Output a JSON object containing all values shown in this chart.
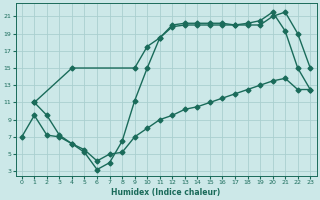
{
  "bg_color": "#cce8e8",
  "grid_color": "#aacfcf",
  "line_color": "#1a6b5a",
  "line_width": 1.0,
  "marker": "D",
  "marker_size": 2.5,
  "xlabel": "Humidex (Indice chaleur)",
  "xlim": [
    -0.5,
    23.5
  ],
  "ylim": [
    2.5,
    22.5
  ],
  "xticks": [
    0,
    1,
    2,
    3,
    4,
    5,
    6,
    7,
    8,
    9,
    10,
    11,
    12,
    13,
    14,
    15,
    16,
    17,
    18,
    19,
    20,
    21,
    22,
    23
  ],
  "yticks": [
    3,
    5,
    7,
    9,
    11,
    13,
    15,
    17,
    19,
    21
  ],
  "line1_x": [
    1,
    2,
    3,
    4,
    5,
    6,
    7,
    8,
    9,
    10,
    11,
    12,
    13,
    14,
    15,
    16,
    17,
    18,
    19,
    20,
    21,
    22,
    23
  ],
  "line1_y": [
    11,
    9.5,
    7.2,
    6.2,
    5.2,
    3.2,
    4.0,
    6.5,
    11.2,
    15.0,
    18.5,
    19.8,
    20.0,
    20.0,
    20.0,
    20.0,
    20.0,
    20.0,
    20.0,
    21.0,
    21.5,
    19.0,
    15.0
  ],
  "line2_x": [
    1,
    4,
    9,
    10,
    11,
    12,
    13,
    14,
    15,
    16,
    17,
    18,
    19,
    20,
    21,
    22,
    23
  ],
  "line2_y": [
    11,
    15.0,
    15.0,
    17.5,
    18.5,
    20.0,
    20.2,
    20.2,
    20.2,
    20.2,
    20.0,
    20.2,
    20.5,
    21.5,
    19.3,
    15.0,
    12.5
  ],
  "line3_x": [
    0,
    1,
    2,
    3,
    4,
    5,
    6,
    7,
    8,
    9,
    10,
    11,
    12,
    13,
    14,
    15,
    16,
    17,
    18,
    19,
    20,
    21,
    22,
    23
  ],
  "line3_y": [
    7.0,
    9.5,
    7.2,
    7.0,
    6.2,
    5.5,
    4.2,
    5.0,
    5.2,
    7.0,
    8.0,
    9.0,
    9.5,
    10.2,
    10.5,
    11.0,
    11.5,
    12.0,
    12.5,
    13.0,
    13.5,
    13.8,
    12.5,
    12.5
  ]
}
